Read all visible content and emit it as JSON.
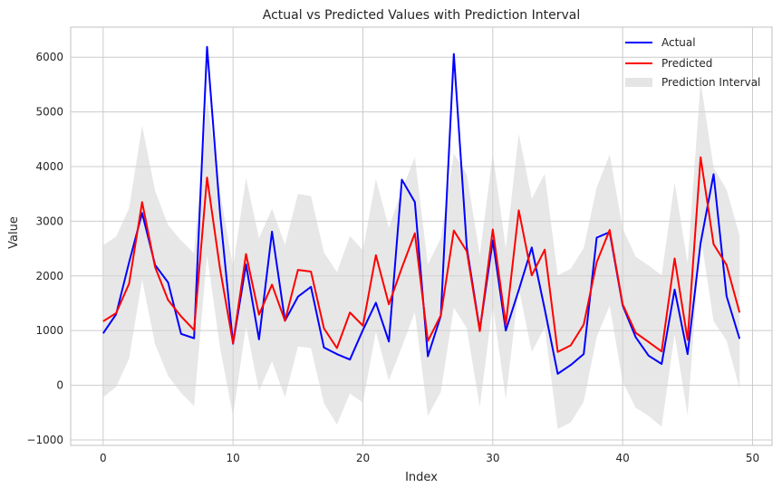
{
  "chart_data": {
    "type": "line",
    "title": "Actual vs Predicted Values with Prediction Interval",
    "xlabel": "Index",
    "ylabel": "Value",
    "xlim": [
      -2.5,
      51.5
    ],
    "ylim": [
      -1100,
      6550
    ],
    "grid": true,
    "legend_position": "top-right",
    "x_ticks": [
      0,
      10,
      20,
      30,
      40,
      50
    ],
    "y_ticks": [
      -1000,
      0,
      1000,
      2000,
      3000,
      4000,
      5000,
      6000
    ],
    "x_tick_labels": [
      "0",
      "10",
      "20",
      "30",
      "40",
      "50"
    ],
    "y_tick_labels": [
      "−1000",
      "0",
      "1000",
      "2000",
      "3000",
      "4000",
      "5000",
      "6000"
    ],
    "x": [
      0,
      1,
      2,
      3,
      4,
      5,
      6,
      7,
      8,
      9,
      10,
      11,
      12,
      13,
      14,
      15,
      16,
      17,
      18,
      19,
      20,
      21,
      22,
      23,
      24,
      25,
      26,
      27,
      28,
      29,
      30,
      31,
      32,
      33,
      34,
      35,
      36,
      37,
      38,
      39,
      40,
      41,
      42,
      43,
      44,
      45,
      46,
      47,
      48,
      49
    ],
    "series": [
      {
        "name": "Actual",
        "color": "#0000ff",
        "values": [
          950,
          1300,
          2250,
          3150,
          2200,
          1880,
          940,
          860,
          6190,
          3150,
          760,
          2210,
          840,
          2810,
          1180,
          1620,
          1800,
          690,
          570,
          470,
          1010,
          1510,
          800,
          3760,
          3350,
          530,
          1270,
          6060,
          2520,
          1010,
          2650,
          1000,
          1740,
          2520,
          1390,
          210,
          370,
          570,
          2700,
          2800,
          1460,
          880,
          540,
          390,
          1750,
          570,
          2600,
          3860,
          1630,
          850
        ]
      },
      {
        "name": "Predicted",
        "color": "#ff0000",
        "values": [
          1170,
          1320,
          1860,
          3350,
          2160,
          1560,
          1260,
          1010,
          3800,
          2130,
          770,
          2400,
          1290,
          1840,
          1180,
          2110,
          2080,
          1040,
          680,
          1330,
          1090,
          2380,
          1480,
          2150,
          2780,
          810,
          1280,
          2830,
          2450,
          990,
          2850,
          1110,
          3200,
          2010,
          2480,
          610,
          730,
          1110,
          2250,
          2840,
          1480,
          960,
          790,
          620,
          2320,
          830,
          4170,
          2580,
          2200,
          1330
        ]
      }
    ],
    "interval": {
      "name": "Prediction Interval",
      "color": "#d3d3d3",
      "lower": [
        -220,
        -30,
        490,
        1930,
        750,
        170,
        -140,
        -380,
        2380,
        690,
        -560,
        1080,
        -100,
        440,
        -220,
        710,
        680,
        -330,
        -720,
        -150,
        -320,
        980,
        90,
        700,
        1340,
        -560,
        -120,
        1420,
        1040,
        -400,
        1470,
        -250,
        1780,
        610,
        1060,
        -800,
        -680,
        -300,
        880,
        1460,
        60,
        -410,
        -560,
        -760,
        930,
        -550,
        2740,
        1170,
        820,
        -60
      ],
      "upper": [
        2560,
        2720,
        3240,
        4750,
        3560,
        2930,
        2650,
        2410,
        5210,
        3540,
        2160,
        3790,
        2690,
        3230,
        2570,
        3500,
        3460,
        2430,
        2070,
        2730,
        2470,
        3770,
        2880,
        3570,
        4170,
        2210,
        2690,
        4240,
        3860,
        2380,
        4240,
        2500,
        4600,
        3410,
        3870,
        2010,
        2130,
        2510,
        3620,
        4220,
        2870,
        2350,
        2190,
        2010,
        3710,
        2230,
        5560,
        3980,
        3580,
        2740
      ]
    }
  }
}
